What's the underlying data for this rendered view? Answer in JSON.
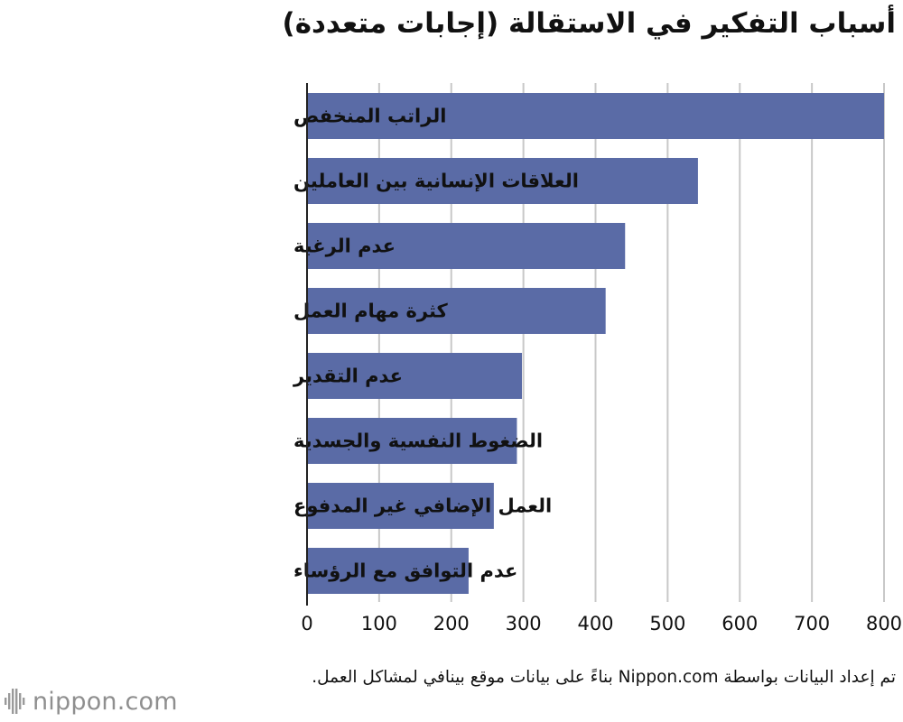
{
  "chart_data": {
    "type": "bar",
    "orientation": "horizontal",
    "title": "أسباب التفكير في الاستقالة (إجابات متعددة)",
    "categories": [
      "الراتب المنخفض",
      "العلاقات الإنسانية بين العاملين",
      "عدم الرغبة",
      "كثرة مهام العمل",
      "عدم التقدير",
      "الضغوط النفسية والجسدية",
      "العمل الإضافي غير المدفوع",
      "عدم التوافق مع الرؤساء"
    ],
    "values": [
      800,
      542,
      441,
      414,
      298,
      291,
      259,
      224
    ],
    "xlim": [
      0,
      800
    ],
    "xticks": [
      0,
      100,
      200,
      300,
      400,
      500,
      600,
      700,
      800
    ],
    "xlabel": "",
    "ylabel": "",
    "grid": "vertical",
    "legend": "none",
    "bar_color": "#5a6ba6",
    "grid_color": "#c8c8c8"
  },
  "footer": {
    "source": "تم إعداد البيانات بواسطة Nippon.com بناءً على بيانات موقع بينافي لمشاكل العمل.",
    "logo_text": "nippon.com",
    "logo_icon": "nippon-logo-icon"
  }
}
